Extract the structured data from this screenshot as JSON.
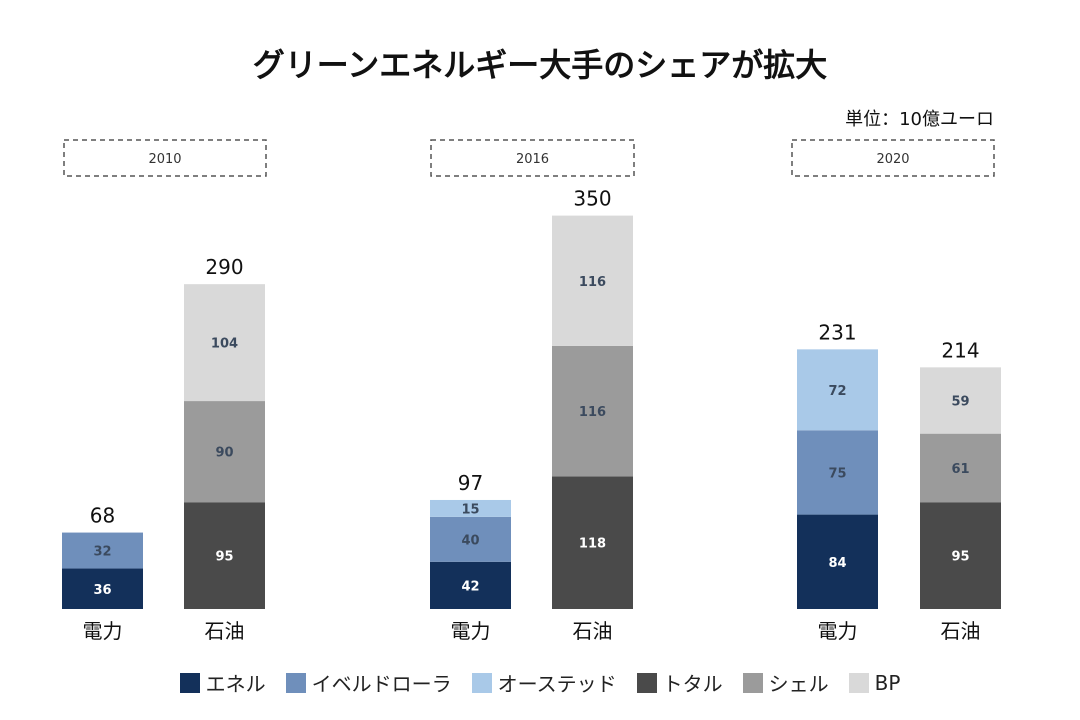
{
  "title": "グリーンエネルギー大手のシェアが拡大",
  "unit_label": "単位：10億ユーロ",
  "chart_data": {
    "type": "bar",
    "stacked": true,
    "title": "グリーンエネルギー大手のシェアが拡大",
    "unit": "単位：10億ユーロ",
    "groups": [
      {
        "year": "2010",
        "bars": [
          {
            "category": "電力",
            "total": 68,
            "segments": [
              {
                "series": "エネル",
                "value": 36
              },
              {
                "series": "イベルドローラ",
                "value": 32
              }
            ]
          },
          {
            "category": "石油",
            "total": 290,
            "segments": [
              {
                "series": "トタル",
                "value": 95
              },
              {
                "series": "シェル",
                "value": 90
              },
              {
                "series": "BP",
                "value": 104
              }
            ]
          }
        ]
      },
      {
        "year": "2016",
        "bars": [
          {
            "category": "電力",
            "total": 97,
            "segments": [
              {
                "series": "エネル",
                "value": 42
              },
              {
                "series": "イベルドローラ",
                "value": 40
              },
              {
                "series": "オーステッド",
                "value": 15
              }
            ]
          },
          {
            "category": "石油",
            "total": 350,
            "segments": [
              {
                "series": "トタル",
                "value": 118
              },
              {
                "series": "シェル",
                "value": 116
              },
              {
                "series": "BP",
                "value": 116
              }
            ]
          }
        ]
      },
      {
        "year": "2020",
        "bars": [
          {
            "category": "電力",
            "total": 231,
            "segments": [
              {
                "series": "エネル",
                "value": 84
              },
              {
                "series": "イベルドローラ",
                "value": 75
              },
              {
                "series": "オーステッド",
                "value": 72
              }
            ]
          },
          {
            "category": "石油",
            "total": 214,
            "segments": [
              {
                "series": "トタル",
                "value": 95
              },
              {
                "series": "シェル",
                "value": 61
              },
              {
                "series": "BP",
                "value": 59
              }
            ]
          }
        ]
      }
    ],
    "legend": [
      {
        "name": "エネル",
        "color": "#13305a"
      },
      {
        "name": "イベルドローラ",
        "color": "#6f8fbb"
      },
      {
        "name": "オーステッド",
        "color": "#a9c9e8"
      },
      {
        "name": "トタル",
        "color": "#4a4a4a"
      },
      {
        "name": "シェル",
        "color": "#9b9b9b"
      },
      {
        "name": "BP",
        "color": "#d9d9d9"
      }
    ],
    "legend_position": "bottom",
    "grid": false
  }
}
